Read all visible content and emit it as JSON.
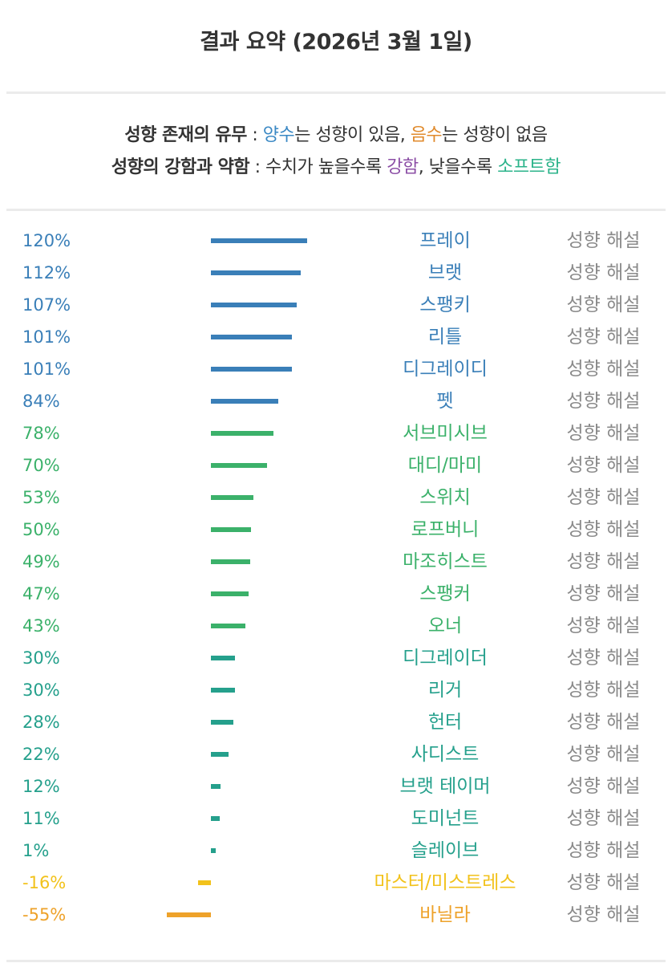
{
  "header": {
    "title": "결과 요약 (2026년 3월 1일)"
  },
  "legend": {
    "line1": {
      "label": "성향 존재의 유무",
      "sep": " : ",
      "positive": "양수",
      "text1": "는 성향이 있음, ",
      "negative": "음수",
      "text2": "는 성향이 없음"
    },
    "line2": {
      "label": "성향의 강함과 약함",
      "sep": " : ",
      "text1": "수치가 높을수록 ",
      "strong": "강함",
      "text2": ", 낮을수록 ",
      "soft": "소프트함"
    }
  },
  "colors": {
    "blue": "#3a7fb8",
    "green": "#3bb16a",
    "teal": "#25a08c",
    "yellow": "#f2c21b",
    "orange": "#eea22a",
    "gray": "#8a8a8a"
  },
  "explain_label": "성향 해설",
  "chart_data": {
    "type": "bar",
    "orientation": "horizontal",
    "title": "결과 요약 (2026년 3월 1일)",
    "unit": "%",
    "items": [
      {
        "name": "프레이",
        "value": 120,
        "label": "120%",
        "color": "#3a7fb8"
      },
      {
        "name": "브랫",
        "value": 112,
        "label": "112%",
        "color": "#3a7fb8"
      },
      {
        "name": "스팽키",
        "value": 107,
        "label": "107%",
        "color": "#3a7fb8"
      },
      {
        "name": "리틀",
        "value": 101,
        "label": "101%",
        "color": "#3a7fb8"
      },
      {
        "name": "디그레이디",
        "value": 101,
        "label": "101%",
        "color": "#3a7fb8"
      },
      {
        "name": "펫",
        "value": 84,
        "label": "84%",
        "color": "#3a7fb8"
      },
      {
        "name": "서브미시브",
        "value": 78,
        "label": "78%",
        "color": "#3bb16a"
      },
      {
        "name": "대디/마미",
        "value": 70,
        "label": "70%",
        "color": "#3bb16a"
      },
      {
        "name": "스위치",
        "value": 53,
        "label": "53%",
        "color": "#3bb16a"
      },
      {
        "name": "로프버니",
        "value": 50,
        "label": "50%",
        "color": "#3bb16a"
      },
      {
        "name": "마조히스트",
        "value": 49,
        "label": "49%",
        "color": "#3bb16a"
      },
      {
        "name": "스팽커",
        "value": 47,
        "label": "47%",
        "color": "#3bb16a"
      },
      {
        "name": "오너",
        "value": 43,
        "label": "43%",
        "color": "#3bb16a"
      },
      {
        "name": "디그레이더",
        "value": 30,
        "label": "30%",
        "color": "#25a08c"
      },
      {
        "name": "리거",
        "value": 30,
        "label": "30%",
        "color": "#25a08c"
      },
      {
        "name": "헌터",
        "value": 28,
        "label": "28%",
        "color": "#25a08c"
      },
      {
        "name": "사디스트",
        "value": 22,
        "label": "22%",
        "color": "#25a08c"
      },
      {
        "name": "브랫 테이머",
        "value": 12,
        "label": "12%",
        "color": "#25a08c"
      },
      {
        "name": "도미넌트",
        "value": 11,
        "label": "11%",
        "color": "#25a08c"
      },
      {
        "name": "슬레이브",
        "value": 1,
        "label": "1%",
        "color": "#25a08c"
      },
      {
        "name": "마스터/미스트레스",
        "value": -16,
        "label": "-16%",
        "color": "#f2c21b"
      },
      {
        "name": "바닐라",
        "value": -55,
        "label": "-55%",
        "color": "#eea22a"
      }
    ]
  }
}
